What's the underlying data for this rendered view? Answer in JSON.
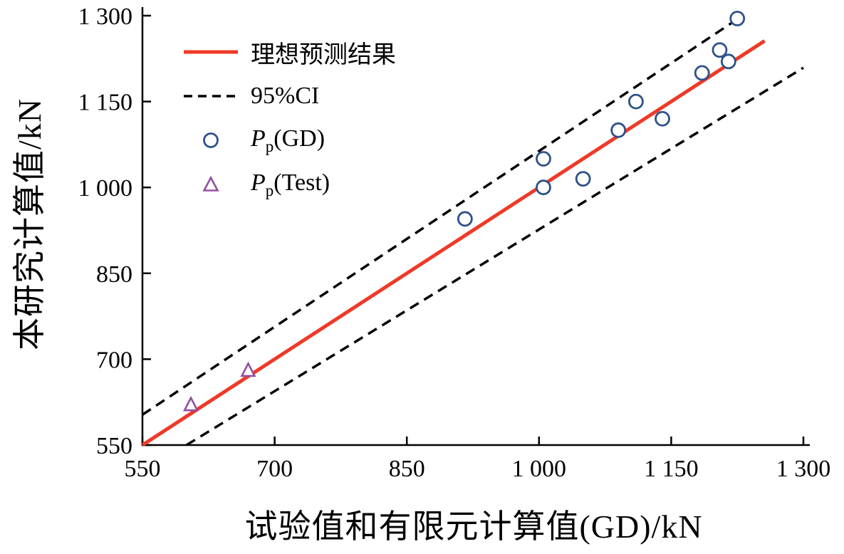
{
  "chart_data": {
    "type": "scatter",
    "title": "",
    "xlabel": "试验值和有限元计算值(GD)/kN",
    "ylabel": "本研究计算值/kN",
    "xlim": [
      550,
      1300
    ],
    "ylim": [
      550,
      1300
    ],
    "grid": false,
    "xticks": {
      "values": [
        550,
        700,
        850,
        1000,
        1150,
        1300
      ],
      "labels": [
        "550",
        "700",
        "850",
        "1 000",
        "1 150",
        "1 300"
      ]
    },
    "yticks": {
      "values": [
        550,
        700,
        850,
        1000,
        1150,
        1300
      ],
      "labels": [
        "550",
        "700",
        "850",
        "1 000",
        "1 150",
        "1 300"
      ]
    },
    "reference_lines": [
      {
        "name": "ideal-prediction",
        "label": "理想预测结果",
        "style": "solid",
        "color": "#ee3a28",
        "width": 5,
        "points": [
          [
            550,
            550
          ],
          [
            1256,
            1256
          ]
        ]
      },
      {
        "name": "ci-upper",
        "label": "95%CI",
        "style": "dashed",
        "color": "#000000",
        "width": 3.5,
        "points": [
          [
            550,
            603
          ],
          [
            1231,
            1300
          ]
        ]
      },
      {
        "name": "ci-lower",
        "label": "95%CI",
        "style": "dashed",
        "color": "#000000",
        "width": 3.5,
        "points": [
          [
            600,
            550
          ],
          [
            1300,
            1209
          ]
        ]
      }
    ],
    "series": [
      {
        "name": "Pp-GD",
        "marker": "circle",
        "color": "#2e5188",
        "points": [
          [
            916,
            945
          ],
          [
            1005,
            1050
          ],
          [
            1005,
            1000
          ],
          [
            1050,
            1015
          ],
          [
            1090,
            1100
          ],
          [
            1110,
            1150
          ],
          [
            1140,
            1120
          ],
          [
            1185,
            1200
          ],
          [
            1205,
            1240
          ],
          [
            1215,
            1220
          ],
          [
            1225,
            1295
          ]
        ]
      },
      {
        "name": "Pp-Test",
        "marker": "triangle",
        "color": "#9350a1",
        "points": [
          [
            605,
            620
          ],
          [
            670,
            680
          ]
        ]
      }
    ],
    "legend": {
      "position": "inside-top-left",
      "items": [
        {
          "key": "ideal",
          "sample": "line-solid",
          "color": "#ee3a28",
          "label": "理想预测结果"
        },
        {
          "key": "ci",
          "sample": "line-dashed",
          "color": "#000000",
          "label": "95%CI"
        },
        {
          "key": "pp-gd",
          "sample": "circle",
          "color": "#2e5188",
          "label_main": "P",
          "label_sub": "p",
          "label_rest": "(GD)"
        },
        {
          "key": "pp-test",
          "sample": "triangle",
          "color": "#9350a1",
          "label_main": "P",
          "label_sub": "p",
          "label_rest": "(Test)"
        }
      ]
    },
    "colors": {
      "ideal_line": "#ee3a28",
      "ci_line": "#000000",
      "gd_marker": "#2e5188",
      "test_marker": "#9350a1",
      "axis": "#000000",
      "background": "#ffffff"
    }
  }
}
